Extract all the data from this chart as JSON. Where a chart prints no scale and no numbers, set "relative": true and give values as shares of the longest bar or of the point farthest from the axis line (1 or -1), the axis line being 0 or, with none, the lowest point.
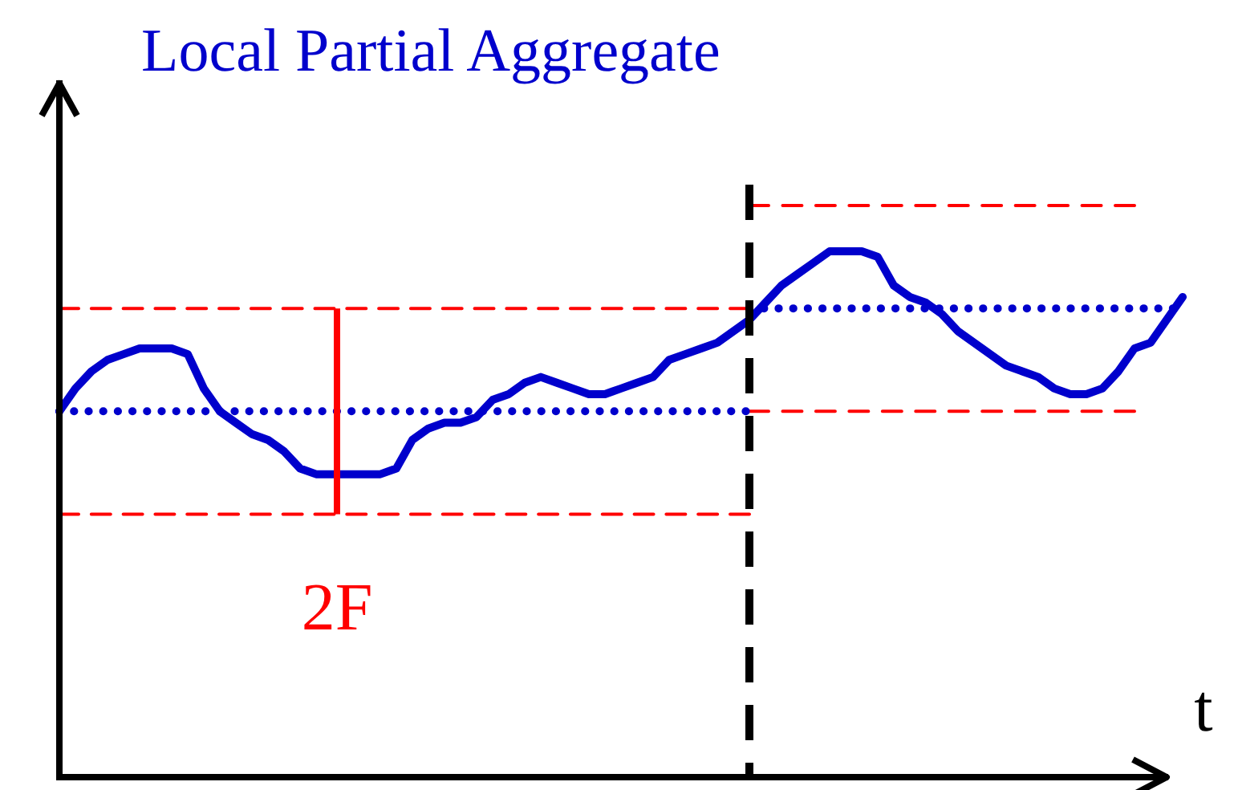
{
  "chart_data": {
    "type": "line",
    "title": "Local Partial Aggregate",
    "xlabel": "t",
    "relative": true,
    "categories": [
      null,
      null,
      null,
      null,
      null,
      null,
      null,
      null,
      null,
      null,
      null,
      null,
      null,
      null,
      null,
      null,
      null,
      null,
      null,
      null,
      null,
      null,
      null,
      null,
      null,
      null,
      null,
      null,
      null,
      null,
      null,
      null,
      null,
      null,
      null,
      null,
      null,
      null,
      null,
      null,
      null,
      null,
      null,
      null,
      null,
      null,
      null,
      null,
      null,
      null,
      null,
      null,
      null,
      null,
      null,
      null,
      null,
      null,
      null,
      null,
      null,
      null,
      null,
      null,
      null,
      null,
      null,
      null,
      null,
      null,
      null
    ],
    "series": [
      {
        "color": "#0000cc",
        "line_style": "solid",
        "values": [
          0.64,
          0.68,
          0.71,
          0.73,
          0.74,
          0.75,
          0.75,
          0.75,
          0.74,
          0.68,
          0.64,
          0.62,
          0.6,
          0.59,
          0.57,
          0.54,
          0.53,
          0.53,
          0.53,
          0.53,
          0.53,
          0.54,
          0.59,
          0.61,
          0.62,
          0.62,
          0.63,
          0.66,
          0.67,
          0.69,
          0.7,
          0.69,
          0.68,
          0.67,
          0.67,
          0.68,
          0.69,
          0.7,
          0.73,
          0.74,
          0.75,
          0.76,
          0.78,
          0.8,
          0.83,
          0.86,
          0.88,
          0.9,
          0.92,
          0.92,
          0.92,
          0.91,
          0.86,
          0.84,
          0.83,
          0.81,
          0.78,
          0.76,
          0.74,
          0.72,
          0.71,
          0.7,
          0.68,
          0.67,
          0.67,
          0.68,
          0.71,
          0.75,
          0.76,
          0.8,
          0.84
        ]
      },
      {
        "color": "#0000cc",
        "line_style": "dotted",
        "values": [
          0.64,
          0.64,
          0.64,
          0.64,
          0.64,
          0.64,
          0.64,
          0.64,
          0.64,
          0.64,
          0.64,
          0.64,
          0.64,
          0.64,
          0.64,
          0.64,
          0.64,
          0.64,
          0.64,
          0.64,
          0.64,
          0.64,
          0.64,
          0.64,
          0.64,
          0.64,
          0.64,
          0.64,
          0.64,
          0.64,
          0.64,
          0.64,
          0.64,
          0.64,
          0.64,
          0.64,
          0.64,
          0.64,
          0.64,
          0.64,
          0.64,
          0.64,
          0.64,
          0.64,
          null,
          null,
          null,
          null,
          null,
          null,
          null,
          null,
          null,
          null,
          null,
          null,
          null,
          null,
          null,
          null,
          null,
          null,
          null,
          null,
          null,
          null,
          null,
          null,
          null,
          null,
          null
        ]
      },
      {
        "color": "#0000cc",
        "line_style": "dotted",
        "values": [
          null,
          null,
          null,
          null,
          null,
          null,
          null,
          null,
          null,
          null,
          null,
          null,
          null,
          null,
          null,
          null,
          null,
          null,
          null,
          null,
          null,
          null,
          null,
          null,
          null,
          null,
          null,
          null,
          null,
          null,
          null,
          null,
          null,
          null,
          null,
          null,
          null,
          null,
          null,
          null,
          null,
          null,
          null,
          0.82,
          0.82,
          0.82,
          0.82,
          0.82,
          0.82,
          0.82,
          0.82,
          0.82,
          0.82,
          0.82,
          0.82,
          0.82,
          0.82,
          0.82,
          0.82,
          0.82,
          0.82,
          0.82,
          0.82,
          0.82,
          0.82,
          0.82,
          0.82,
          0.82,
          0.82,
          0.82,
          0.82
        ]
      },
      {
        "color": "#ff0000",
        "line_style": "dashed",
        "values": [
          0.82,
          0.82,
          0.82,
          0.82,
          0.82,
          0.82,
          0.82,
          0.82,
          0.82,
          0.82,
          0.82,
          0.82,
          0.82,
          0.82,
          0.82,
          0.82,
          0.82,
          0.82,
          0.82,
          0.82,
          0.82,
          0.82,
          0.82,
          0.82,
          0.82,
          0.82,
          0.82,
          0.82,
          0.82,
          0.82,
          0.82,
          0.82,
          0.82,
          0.82,
          0.82,
          0.82,
          0.82,
          0.82,
          0.82,
          0.82,
          0.82,
          0.82,
          0.82,
          0.82,
          null,
          null,
          null,
          null,
          null,
          null,
          null,
          null,
          null,
          null,
          null,
          null,
          null,
          null,
          null,
          null,
          null,
          null,
          null,
          null,
          null,
          null,
          null,
          null,
          null,
          null,
          null
        ]
      },
      {
        "color": "#ff0000",
        "line_style": "dashed",
        "values": [
          0.46,
          0.46,
          0.46,
          0.46,
          0.46,
          0.46,
          0.46,
          0.46,
          0.46,
          0.46,
          0.46,
          0.46,
          0.46,
          0.46,
          0.46,
          0.46,
          0.46,
          0.46,
          0.46,
          0.46,
          0.46,
          0.46,
          0.46,
          0.46,
          0.46,
          0.46,
          0.46,
          0.46,
          0.46,
          0.46,
          0.46,
          0.46,
          0.46,
          0.46,
          0.46,
          0.46,
          0.46,
          0.46,
          0.46,
          0.46,
          0.46,
          0.46,
          0.46,
          0.46,
          null,
          null,
          null,
          null,
          null,
          null,
          null,
          null,
          null,
          null,
          null,
          null,
          null,
          null,
          null,
          null,
          null,
          null,
          null,
          null,
          null,
          null,
          null,
          null,
          null,
          null,
          null
        ]
      },
      {
        "color": "#ff0000",
        "line_style": "dashed",
        "values": [
          null,
          null,
          null,
          null,
          null,
          null,
          null,
          null,
          null,
          null,
          null,
          null,
          null,
          null,
          null,
          null,
          null,
          null,
          null,
          null,
          null,
          null,
          null,
          null,
          null,
          null,
          null,
          null,
          null,
          null,
          null,
          null,
          null,
          null,
          null,
          null,
          null,
          null,
          null,
          null,
          null,
          null,
          null,
          1.0,
          1.0,
          1.0,
          1.0,
          1.0,
          1.0,
          1.0,
          1.0,
          1.0,
          1.0,
          1.0,
          1.0,
          1.0,
          1.0,
          1.0,
          1.0,
          1.0,
          1.0,
          1.0,
          1.0,
          1.0,
          1.0,
          1.0,
          1.0,
          1.0,
          null,
          null,
          null
        ]
      },
      {
        "color": "#ff0000",
        "line_style": "dashed",
        "values": [
          null,
          null,
          null,
          null,
          null,
          null,
          null,
          null,
          null,
          null,
          null,
          null,
          null,
          null,
          null,
          null,
          null,
          null,
          null,
          null,
          null,
          null,
          null,
          null,
          null,
          null,
          null,
          null,
          null,
          null,
          null,
          null,
          null,
          null,
          null,
          null,
          null,
          null,
          null,
          null,
          null,
          null,
          null,
          0.64,
          0.64,
          0.64,
          0.64,
          0.64,
          0.64,
          0.64,
          0.64,
          0.64,
          0.64,
          0.64,
          0.64,
          0.64,
          0.64,
          0.64,
          0.64,
          0.64,
          0.64,
          0.64,
          0.64,
          0.64,
          0.64,
          0.64,
          0.64,
          0.64,
          null,
          null,
          null
        ]
      }
    ],
    "annotations": [
      "2F"
    ]
  }
}
